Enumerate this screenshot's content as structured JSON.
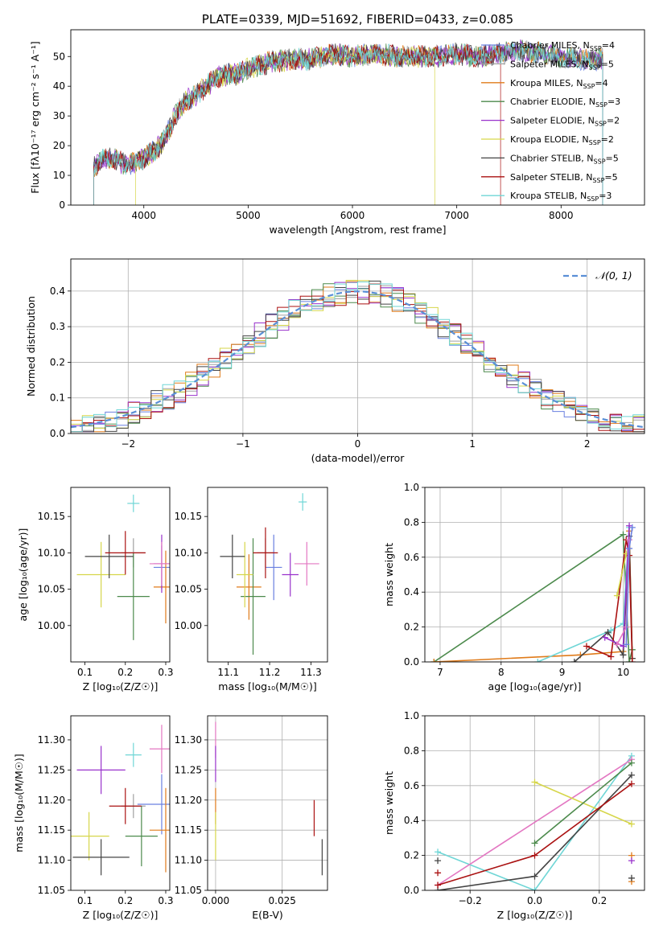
{
  "colors": {
    "chabrier_miles": "#6a80e0",
    "salpeter_miles": "#a0a0a0",
    "kroupa_miles": "#e07b1a",
    "chabrier_elodie": "#4c8a4c",
    "salpeter_elodie": "#9932cc",
    "kroupa_elodie": "#d6d64a",
    "chabrier_stelib": "#444444",
    "salpeter_stelib": "#aa1111",
    "kroupa_stelib": "#6fd6d6",
    "pink": "#e377c2",
    "normal": "#5a8fd6"
  },
  "chart_data": [
    {
      "type": "line",
      "title": "PLATE=0339, MJD=51692, FIBERID=0433, z=0.085",
      "xlabel": "wavelength [Angstrom, rest frame]",
      "ylabel": "Flux [fλ10⁻¹⁷ erg cm⁻² s⁻¹ A⁻¹]",
      "xlim": [
        3300,
        8800
      ],
      "ylim": [
        0,
        59
      ],
      "xticks": [
        4000,
        5000,
        6000,
        7000,
        8000
      ],
      "yticks": [
        0,
        10,
        20,
        30,
        40,
        50
      ],
      "legend_position": "top-right",
      "legend": [
        "Chabrier MILES, N_SSP=4",
        "Salpeter MILES, N_SSP=5",
        "Kroupa MILES, N_SSP=4",
        "Chabrier ELODIE, N_SSP=3",
        "Salpeter ELODIE, N_SSP=2",
        "Kroupa ELODIE, N_SSP=2",
        "Chabrier STELIB, N_SSP=5",
        "Salpeter STELIB, N_SSP=5",
        "Kroupa STELIB, N_SSP=3"
      ],
      "continuum": {
        "x": [
          3500,
          3600,
          3700,
          3800,
          3900,
          4000,
          4100,
          4200,
          4300,
          4400,
          4500,
          4600,
          4700,
          4800,
          4900,
          5000,
          5200,
          5400,
          5600,
          5800,
          6000,
          6200,
          6400,
          6600,
          6800,
          7000,
          7200,
          7400,
          7600,
          7800,
          8000,
          8200,
          8400
        ],
        "y": [
          12,
          15,
          16,
          14,
          14,
          16,
          18,
          22,
          30,
          35,
          37,
          40,
          43,
          44,
          44,
          46,
          48,
          49,
          49,
          51,
          50,
          51,
          50,
          50,
          50,
          51,
          50,
          51,
          52,
          51,
          50,
          49,
          49
        ]
      }
    },
    {
      "type": "line",
      "xlabel": "(data-model)/error",
      "ylabel": "Normed distribution",
      "xlim": [
        -2.5,
        2.5
      ],
      "ylim": [
        0,
        0.49
      ],
      "xticks": [
        -2,
        -1,
        0,
        1,
        2
      ],
      "yticks": [
        0.0,
        0.1,
        0.2,
        0.3,
        0.4
      ],
      "grid": true,
      "legend_position": "top-right",
      "legend": [
        "𝒩(0, 1)"
      ],
      "bin_width": 0.1,
      "series_count": 9
    },
    {
      "type": "scatter",
      "xlabel": "Z [log₁₀(Z/Z☉)]",
      "ylabel": "age  [log₁₀(age/yr)]",
      "xlim": [
        0.065,
        0.31
      ],
      "ylim": [
        9.95,
        10.19
      ],
      "xticks": [
        0.1,
        0.2,
        0.3
      ],
      "yticks": [
        10.0,
        10.05,
        10.1,
        10.15
      ],
      "points": [
        {
          "x": 0.29,
          "y": 10.08,
          "xerr": 0.02,
          "yerr": 0.03,
          "c": "chabrier_miles"
        },
        {
          "x": 0.22,
          "y": 10.1,
          "xerr": 0.03,
          "yerr": 0.02,
          "c": "salpeter_miles"
        },
        {
          "x": 0.3,
          "y": 10.053,
          "xerr": 0.03,
          "yerr": 0.05,
          "c": "kroupa_miles"
        },
        {
          "x": 0.22,
          "y": 10.04,
          "xerr": 0.04,
          "yerr": 0.06,
          "c": "chabrier_elodie"
        },
        {
          "x": 0.29,
          "y": 10.085,
          "xerr": 0.02,
          "yerr": 0.04,
          "c": "salpeter_elodie"
        },
        {
          "x": 0.14,
          "y": 10.07,
          "xerr": 0.06,
          "yerr": 0.045,
          "c": "kroupa_elodie"
        },
        {
          "x": 0.16,
          "y": 10.095,
          "xerr": 0.06,
          "yerr": 0.03,
          "c": "chabrier_stelib"
        },
        {
          "x": 0.2,
          "y": 10.1,
          "xerr": 0.05,
          "yerr": 0.03,
          "c": "salpeter_stelib"
        },
        {
          "x": 0.22,
          "y": 10.168,
          "xerr": 0.015,
          "yerr": 0.012,
          "c": "kroupa_stelib"
        },
        {
          "x": 0.29,
          "y": 10.085,
          "xerr": 0.03,
          "yerr": 0.03,
          "c": "pink"
        }
      ]
    },
    {
      "type": "scatter",
      "xlabel": "mass [log₁₀(M/M☉)]",
      "xlim": [
        11.05,
        11.34
      ],
      "ylim": [
        9.95,
        10.19
      ],
      "xticks": [
        11.1,
        11.2,
        11.3
      ],
      "yticks": [
        10.0,
        10.05,
        10.1,
        10.15
      ],
      "points": [
        {
          "x": 11.21,
          "y": 10.08,
          "xerr": 0.02,
          "yerr": 0.045,
          "c": "chabrier_miles"
        },
        {
          "x": 11.19,
          "y": 10.1,
          "xerr": 0.02,
          "yerr": 0.02,
          "c": "salpeter_miles"
        },
        {
          "x": 11.15,
          "y": 10.053,
          "xerr": 0.03,
          "yerr": 0.045,
          "c": "kroupa_miles"
        },
        {
          "x": 11.16,
          "y": 10.04,
          "xerr": 0.03,
          "yerr": 0.08,
          "c": "chabrier_elodie"
        },
        {
          "x": 11.25,
          "y": 10.07,
          "xerr": 0.02,
          "yerr": 0.03,
          "c": "salpeter_elodie"
        },
        {
          "x": 11.14,
          "y": 10.07,
          "xerr": 0.02,
          "yerr": 0.045,
          "c": "kroupa_elodie"
        },
        {
          "x": 11.11,
          "y": 10.095,
          "xerr": 0.03,
          "yerr": 0.03,
          "c": "chabrier_stelib"
        },
        {
          "x": 11.19,
          "y": 10.1,
          "xerr": 0.03,
          "yerr": 0.035,
          "c": "salpeter_stelib"
        },
        {
          "x": 11.28,
          "y": 10.17,
          "xerr": 0.01,
          "yerr": 0.012,
          "c": "kroupa_stelib"
        },
        {
          "x": 11.29,
          "y": 10.085,
          "xerr": 0.03,
          "yerr": 0.03,
          "c": "pink"
        }
      ]
    },
    {
      "type": "line",
      "xlabel": "age  [log₁₀(age/yr)]",
      "ylabel": "mass weight",
      "xlim": [
        6.75,
        10.35
      ],
      "ylim": [
        0,
        1.0
      ],
      "xticks": [
        7,
        8,
        9,
        10
      ],
      "yticks": [
        0.0,
        0.2,
        0.4,
        0.6,
        0.8,
        1.0
      ],
      "grid": true,
      "series": [
        {
          "c": "chabrier_elodie",
          "x": [
            6.9,
            10.0,
            10.1,
            10.15
          ],
          "y": [
            0.0,
            0.73,
            0.0,
            0.07
          ]
        },
        {
          "c": "kroupa_miles",
          "x": [
            6.9,
            9.3,
            10.0,
            10.1,
            10.15
          ],
          "y": [
            0.0,
            0.04,
            0.06,
            0.75,
            0.02
          ]
        },
        {
          "c": "kroupa_stelib",
          "x": [
            8.6,
            9.8,
            10.0,
            10.1
          ],
          "y": [
            0.0,
            0.18,
            0.22,
            0.77
          ]
        },
        {
          "c": "chabrier_stelib",
          "x": [
            9.2,
            9.75,
            10.0,
            10.1,
            10.15
          ],
          "y": [
            0.0,
            0.17,
            0.04,
            0.72,
            0.02
          ]
        },
        {
          "c": "salpeter_stelib",
          "x": [
            9.4,
            9.8,
            10.05,
            10.1,
            10.15
          ],
          "y": [
            0.09,
            0.03,
            0.7,
            0.61,
            0.0
          ]
        },
        {
          "c": "kroupa_elodie",
          "x": [
            9.9,
            10.05
          ],
          "y": [
            0.38,
            0.62
          ]
        },
        {
          "c": "salpeter_elodie",
          "x": [
            9.7,
            10.0,
            10.1
          ],
          "y": [
            0.14,
            0.09,
            0.78
          ]
        },
        {
          "c": "pink",
          "x": [
            9.9,
            10.05,
            10.1
          ],
          "y": [
            0.1,
            0.2,
            0.7
          ]
        },
        {
          "c": "chabrier_miles",
          "x": [
            10.05,
            10.1,
            10.15
          ],
          "y": [
            0.1,
            0.65,
            0.77
          ]
        }
      ]
    },
    {
      "type": "scatter",
      "xlabel": "Z [log₁₀(Z/Z☉)]",
      "ylabel": "mass [log₁₀(M/M☉)]",
      "xlim": [
        0.065,
        0.31
      ],
      "ylim": [
        11.05,
        11.34
      ],
      "xticks": [
        0.1,
        0.2,
        0.3
      ],
      "yticks": [
        11.05,
        11.1,
        11.15,
        11.2,
        11.25,
        11.3
      ],
      "points": [
        {
          "x": 0.29,
          "y": 11.193,
          "xerr": 0.06,
          "yerr": 0.05,
          "c": "chabrier_miles"
        },
        {
          "x": 0.22,
          "y": 11.19,
          "xerr": 0.03,
          "yerr": 0.02,
          "c": "salpeter_miles"
        },
        {
          "x": 0.3,
          "y": 11.15,
          "xerr": 0.04,
          "yerr": 0.07,
          "c": "kroupa_miles"
        },
        {
          "x": 0.24,
          "y": 11.14,
          "xerr": 0.04,
          "yerr": 0.05,
          "c": "chabrier_elodie"
        },
        {
          "x": 0.14,
          "y": 11.25,
          "xerr": 0.06,
          "yerr": 0.04,
          "c": "salpeter_elodie"
        },
        {
          "x": 0.11,
          "y": 11.14,
          "xerr": 0.05,
          "yerr": 0.04,
          "c": "kroupa_elodie"
        },
        {
          "x": 0.14,
          "y": 11.105,
          "xerr": 0.07,
          "yerr": 0.03,
          "c": "chabrier_stelib"
        },
        {
          "x": 0.2,
          "y": 11.19,
          "xerr": 0.04,
          "yerr": 0.03,
          "c": "salpeter_stelib"
        },
        {
          "x": 0.22,
          "y": 11.275,
          "xerr": 0.02,
          "yerr": 0.02,
          "c": "kroupa_stelib"
        },
        {
          "x": 0.29,
          "y": 11.285,
          "xerr": 0.03,
          "yerr": 0.04,
          "c": "pink"
        }
      ]
    },
    {
      "type": "scatter",
      "xlabel": "E(B-V)",
      "xlim": [
        -0.003,
        0.042
      ],
      "ylim": [
        11.05,
        11.34
      ],
      "xticks": [
        0.0,
        0.025
      ],
      "yticks": [
        11.05,
        11.1,
        11.15,
        11.2,
        11.25,
        11.3
      ],
      "grid": true,
      "points": [
        {
          "x": 0.0,
          "y": 11.3,
          "xerr": 0.0,
          "yerr": 0.03,
          "c": "pink"
        },
        {
          "x": 0.0,
          "y": 11.26,
          "xerr": 0.0,
          "yerr": 0.03,
          "c": "salpeter_elodie"
        },
        {
          "x": 0.0,
          "y": 11.19,
          "xerr": 0.0,
          "yerr": 0.03,
          "c": "kroupa_miles"
        },
        {
          "x": 0.0,
          "y": 11.14,
          "xerr": 0.0,
          "yerr": 0.04,
          "c": "kroupa_elodie"
        },
        {
          "x": 0.037,
          "y": 11.17,
          "xerr": 0.0,
          "yerr": 0.03,
          "c": "salpeter_stelib"
        },
        {
          "x": 0.04,
          "y": 11.105,
          "xerr": 0.0,
          "yerr": 0.03,
          "c": "chabrier_stelib"
        }
      ]
    },
    {
      "type": "line",
      "xlabel": "Z [log₁₀(Z/Z☉)]",
      "ylabel": "mass weight",
      "xlim": [
        -0.34,
        0.34
      ],
      "ylim": [
        0,
        1.0
      ],
      "xticks": [
        -0.2,
        0.0,
        0.2
      ],
      "yticks": [
        0.0,
        0.2,
        0.4,
        0.6,
        0.8,
        1.0
      ],
      "grid": true,
      "series": [
        {
          "c": "kroupa_stelib",
          "x": [
            -0.3,
            0.0,
            0.3
          ],
          "y": [
            0.22,
            0.0,
            0.77
          ]
        },
        {
          "c": "pink",
          "x": [
            -0.3,
            0.3
          ],
          "y": [
            0.03,
            0.75
          ]
        },
        {
          "c": "kroupa_elodie",
          "x": [
            0.0,
            0.3
          ],
          "y": [
            0.62,
            0.38
          ]
        },
        {
          "c": "chabrier_elodie",
          "x": [
            0.0,
            0.3
          ],
          "y": [
            0.27,
            0.73
          ]
        },
        {
          "c": "chabrier_stelib",
          "x": [
            -0.3,
            0.0,
            0.3
          ],
          "y": [
            0.0,
            0.08,
            0.66
          ]
        },
        {
          "c": "salpeter_stelib",
          "x": [
            -0.3,
            0.0,
            0.3
          ],
          "y": [
            0.03,
            0.2,
            0.61
          ]
        }
      ],
      "markers": [
        {
          "x": -0.3,
          "y": 0.1,
          "c": "salpeter_stelib"
        },
        {
          "x": -0.3,
          "y": 0.17,
          "c": "chabrier_stelib"
        },
        {
          "x": 0.3,
          "y": 0.2,
          "c": "kroupa_miles"
        },
        {
          "x": 0.3,
          "y": 0.05,
          "c": "kroupa_miles"
        },
        {
          "x": 0.3,
          "y": 0.17,
          "c": "salpeter_elodie"
        },
        {
          "x": 0.3,
          "y": 0.07,
          "c": "chabrier_stelib"
        }
      ]
    }
  ]
}
